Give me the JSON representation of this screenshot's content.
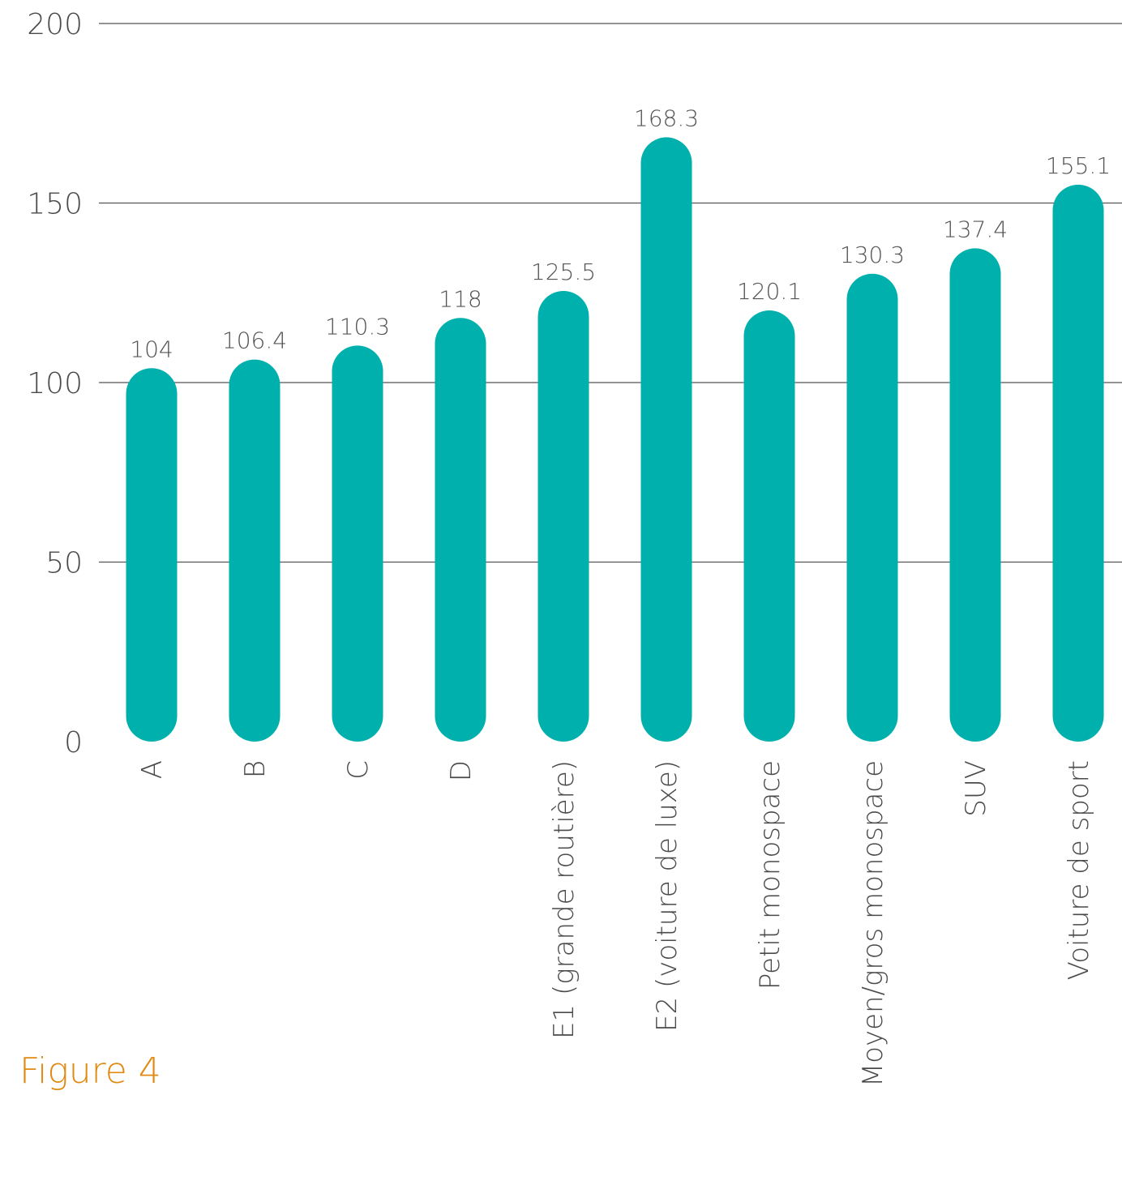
{
  "figure_caption": "Figure 4",
  "chart_data": {
    "type": "bar",
    "categories": [
      "A",
      "B",
      "C",
      "D",
      "E1 (grande routière)",
      "E2 (voiture de luxe)",
      "Petit monospace",
      "Moyen/gros monospace",
      "SUV",
      "Voiture de sport"
    ],
    "values": [
      104,
      106.4,
      110.3,
      118,
      125.5,
      168.3,
      120.1,
      130.3,
      137.4,
      155.1
    ],
    "value_labels": [
      "104",
      "106.4",
      "110.3",
      "118",
      "125.5",
      "168.3",
      "120.1",
      "130.3",
      "137.4",
      "155.1"
    ],
    "yticks": [
      0,
      50,
      100,
      150,
      200
    ],
    "ylim": [
      0,
      200
    ],
    "grid": true,
    "title": "",
    "xlabel": "",
    "ylabel": "",
    "colors": {
      "bar": "#00b0ad",
      "caption": "#e08a12",
      "grid": "#555555"
    }
  }
}
